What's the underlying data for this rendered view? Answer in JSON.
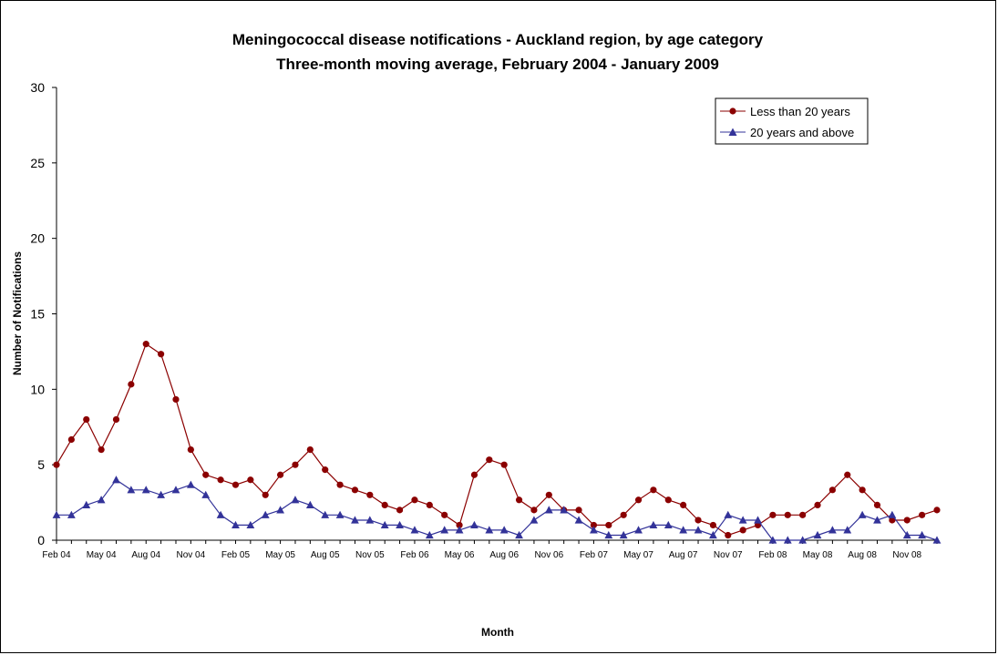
{
  "chart_data": {
    "type": "line",
    "title": "Meningococcal disease notifications - Auckland region, by age category",
    "subtitle": "Three-month moving average, February 2004 - January 2009",
    "xlabel": "Month",
    "ylabel": "Number of Notifications",
    "ylim": [
      0,
      30
    ],
    "yticks": [
      "0",
      "5",
      "10",
      "15",
      "20",
      "25",
      "30"
    ],
    "x": [
      "Feb 04",
      "Mar 04",
      "Apr 04",
      "May 04",
      "Jun 04",
      "Jul 04",
      "Aug 04",
      "Sep 04",
      "Oct 04",
      "Nov 04",
      "Dec 04",
      "Jan 05",
      "Feb 05",
      "Mar 05",
      "Apr 05",
      "May 05",
      "Jun 05",
      "Jul 05",
      "Aug 05",
      "Sep 05",
      "Oct 05",
      "Nov 05",
      "Dec 05",
      "Jan 06",
      "Feb 06",
      "Mar 06",
      "Apr 06",
      "May 06",
      "Jun 06",
      "Jul 06",
      "Aug 06",
      "Sep 06",
      "Oct 06",
      "Nov 06",
      "Dec 06",
      "Jan 07",
      "Feb 07",
      "Mar 07",
      "Apr 07",
      "May 07",
      "Jun 07",
      "Jul 07",
      "Aug 07",
      "Sep 07",
      "Oct 07",
      "Nov 07",
      "Dec 07",
      "Jan 08",
      "Feb 08",
      "Mar 08",
      "Apr 08",
      "May 08",
      "Jun 08",
      "Jul 08",
      "Aug 08",
      "Sep 08",
      "Oct 08",
      "Nov 08",
      "Dec 08",
      "Jan 09"
    ],
    "xtick_labels": [
      "Feb 04",
      "May 04",
      "Aug 04",
      "Nov 04",
      "Feb 05",
      "May 05",
      "Aug 05",
      "Nov 05",
      "Feb 06",
      "May 06",
      "Aug 06",
      "Nov 06",
      "Feb 07",
      "May 07",
      "Aug 07",
      "Nov 07",
      "Feb 08",
      "May 08",
      "Aug 08",
      "Nov 08"
    ],
    "series": [
      {
        "name": "Less than 20 years",
        "color": "#8B0000",
        "marker": "circle",
        "values": [
          5.0,
          6.67,
          8.0,
          6.0,
          8.0,
          10.33,
          13.0,
          12.33,
          9.33,
          6.0,
          4.33,
          4.0,
          3.67,
          4.0,
          3.0,
          4.33,
          5.0,
          6.0,
          4.67,
          3.67,
          3.33,
          3.0,
          2.33,
          2.0,
          2.67,
          2.33,
          1.67,
          1.0,
          4.33,
          5.33,
          5.0,
          2.67,
          2.0,
          3.0,
          2.0,
          2.0,
          1.0,
          1.0,
          1.67,
          2.67,
          3.33,
          2.67,
          2.33,
          1.33,
          1.0,
          0.33,
          0.67,
          1.0,
          1.67,
          1.67,
          1.67,
          2.33,
          3.33,
          4.33,
          3.33,
          2.33,
          1.33,
          1.33,
          1.67,
          2.0
        ]
      },
      {
        "name": "20 years and above",
        "color": "#333399",
        "marker": "triangle",
        "values": [
          1.67,
          1.67,
          2.33,
          2.67,
          4.0,
          3.33,
          3.33,
          3.0,
          3.33,
          3.67,
          3.0,
          1.67,
          1.0,
          1.0,
          1.67,
          2.0,
          2.67,
          2.33,
          1.67,
          1.67,
          1.33,
          1.33,
          1.0,
          1.0,
          0.67,
          0.33,
          0.67,
          0.67,
          1.0,
          0.67,
          0.67,
          0.33,
          1.33,
          2.0,
          2.0,
          1.33,
          0.67,
          0.33,
          0.33,
          0.67,
          1.0,
          1.0,
          0.67,
          0.67,
          0.33,
          1.67,
          1.33,
          1.33,
          0.0,
          0.0,
          0.0,
          0.33,
          0.67,
          0.67,
          1.67,
          1.33,
          1.67,
          0.33,
          0.33,
          0.0
        ]
      }
    ],
    "grid": false,
    "legend_position": "top-right"
  }
}
